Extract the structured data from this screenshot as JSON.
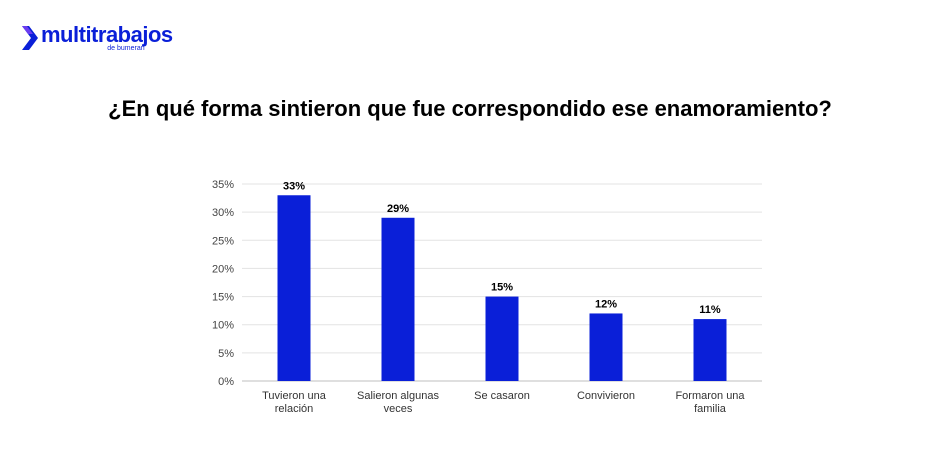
{
  "header": {
    "logo_name": "multitrabajos",
    "logo_sub": "de bumeran",
    "brand_color": "#0a1fd8"
  },
  "chart_data": {
    "type": "bar",
    "title": "¿En qué forma sintieron que fue correspondido ese enamoramiento?",
    "categories": [
      [
        "Tuvieron una",
        "relación"
      ],
      [
        "Salieron algunas",
        "veces"
      ],
      [
        "Se casaron"
      ],
      [
        "Convivieron"
      ],
      [
        "Formaron una",
        "familia"
      ]
    ],
    "values": [
      33,
      29,
      15,
      12,
      11
    ],
    "data_labels": [
      "33%",
      "29%",
      "15%",
      "12%",
      "11%"
    ],
    "yticks": [
      0,
      5,
      10,
      15,
      20,
      25,
      30,
      35
    ],
    "ytick_labels": [
      "0%",
      "5%",
      "10%",
      "15%",
      "20%",
      "25%",
      "30%",
      "35%"
    ],
    "ylim": [
      0,
      35
    ],
    "bar_color": "#0a1fd8",
    "grid": true,
    "xlabel": "",
    "ylabel": ""
  }
}
